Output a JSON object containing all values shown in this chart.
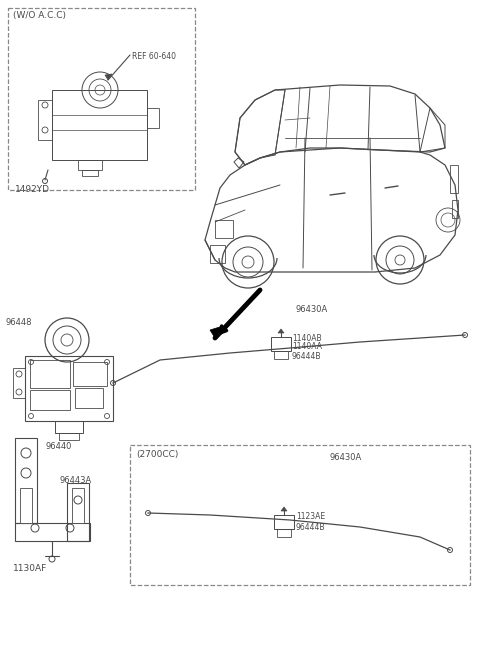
{
  "bg_color": "#ffffff",
  "line_color": "#4a4a4a",
  "dash_color": "#888888",
  "box1_label": "(W/O A.C.C)",
  "box1_ref": "REF 60-640",
  "box1_part": "1492YD",
  "box2_label": "(2700CC)",
  "part_96448": "96448",
  "part_96440": "96440",
  "part_96443A": "96443A",
  "part_1130AF": "1130AF",
  "part_96430A": "96430A",
  "part_1140AB": "1140AB",
  "part_1140AA": "1140AA",
  "part_96444B": "96444B",
  "box2_96430A": "96430A",
  "box2_1123AE": "1123AE",
  "box2_96444B": "96444B",
  "fig_width": 4.8,
  "fig_height": 6.56,
  "dpi": 100
}
